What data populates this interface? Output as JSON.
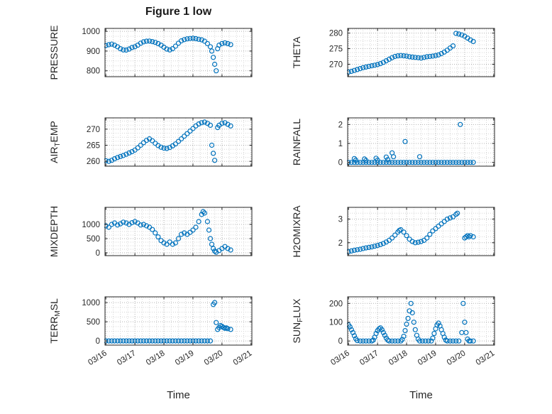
{
  "figure": {
    "title": "Figure 1 low",
    "xlabel": "Time",
    "accent_color": "#0072BD",
    "axis_color": "#262626",
    "grid_color": "#b3b3b3",
    "minor_grid_color": "#d6d6d6",
    "xlim": [
      15.97,
      21.03
    ],
    "xticks": [
      16,
      17,
      18,
      19,
      20,
      21
    ],
    "xticklabels": [
      "03/16",
      "03/17",
      "03/18",
      "03/19",
      "03/20",
      "03/21"
    ],
    "x_minor_step": 0.25
  },
  "chart_data": [
    {
      "type": "scatter",
      "name": "pressure",
      "ylabel": "PRESSURE",
      "row": 0,
      "col": 0,
      "yticks": [
        800,
        900,
        1000
      ],
      "ylim": [
        770,
        1015
      ],
      "yminor": 25,
      "x": [
        16.0,
        16.1,
        16.2,
        16.3,
        16.4,
        16.5,
        16.6,
        16.7,
        16.8,
        16.9,
        17.0,
        17.1,
        17.2,
        17.3,
        17.4,
        17.5,
        17.6,
        17.7,
        17.8,
        17.9,
        18.0,
        18.1,
        18.2,
        18.3,
        18.4,
        18.5,
        18.6,
        18.7,
        18.8,
        18.9,
        19.0,
        19.1,
        19.2,
        19.3,
        19.4,
        19.5,
        19.6,
        19.65,
        19.7,
        19.75,
        19.8,
        19.85,
        19.9,
        20.0,
        20.1,
        20.2,
        20.3
      ],
      "y": [
        928,
        932,
        935,
        930,
        922,
        912,
        906,
        905,
        910,
        918,
        922,
        930,
        940,
        947,
        950,
        951,
        948,
        944,
        938,
        930,
        920,
        910,
        906,
        912,
        925,
        940,
        952,
        958,
        962,
        964,
        965,
        963,
        960,
        957,
        950,
        938,
        922,
        900,
        868,
        833,
        800,
        912,
        930,
        938,
        942,
        938,
        933
      ]
    },
    {
      "type": "scatter",
      "name": "theta",
      "ylabel": "THETA",
      "row": 0,
      "col": 1,
      "yticks": [
        270,
        275,
        280
      ],
      "ylim": [
        266,
        281.5
      ],
      "yminor": 1.25,
      "x": [
        16.0,
        16.1,
        16.2,
        16.3,
        16.4,
        16.5,
        16.6,
        16.7,
        16.8,
        16.9,
        17.0,
        17.1,
        17.2,
        17.3,
        17.4,
        17.5,
        17.6,
        17.7,
        17.8,
        17.9,
        18.0,
        18.1,
        18.2,
        18.3,
        18.4,
        18.5,
        18.6,
        18.7,
        18.8,
        18.9,
        19.0,
        19.1,
        19.2,
        19.3,
        19.4,
        19.5,
        19.6,
        19.7,
        19.8,
        19.9,
        20.0,
        20.1,
        20.2,
        20.3
      ],
      "y": [
        267.5,
        267.7,
        268.0,
        268.3,
        268.6,
        268.9,
        269.1,
        269.3,
        269.5,
        269.7,
        269.9,
        270.2,
        270.6,
        271.1,
        271.6,
        272.1,
        272.5,
        272.7,
        272.8,
        272.7,
        272.6,
        272.4,
        272.3,
        272.2,
        272.1,
        272.0,
        272.2,
        272.4,
        272.5,
        272.6,
        272.8,
        273.0,
        273.4,
        273.9,
        274.5,
        275.2,
        275.9,
        279.9,
        279.7,
        279.4,
        279.0,
        278.4,
        277.8,
        277.3
      ]
    },
    {
      "type": "scatter",
      "name": "airtemp",
      "ylabel": "AIR_{T}EMP",
      "row": 1,
      "col": 0,
      "yticks": [
        260,
        265,
        270
      ],
      "ylim": [
        258.5,
        273.5
      ],
      "yminor": 1.25,
      "x": [
        16.0,
        16.1,
        16.2,
        16.3,
        16.4,
        16.5,
        16.6,
        16.7,
        16.8,
        16.9,
        17.0,
        17.1,
        17.2,
        17.3,
        17.4,
        17.5,
        17.6,
        17.7,
        17.8,
        17.9,
        18.0,
        18.1,
        18.2,
        18.3,
        18.4,
        18.5,
        18.6,
        18.7,
        18.8,
        18.9,
        19.0,
        19.1,
        19.2,
        19.3,
        19.4,
        19.5,
        19.6,
        19.65,
        19.7,
        19.75,
        19.85,
        19.9,
        20.0,
        20.1,
        20.2,
        20.3
      ],
      "y": [
        260.2,
        260.0,
        260.3,
        260.8,
        261.2,
        261.5,
        261.8,
        262.2,
        262.6,
        263.0,
        263.5,
        264.2,
        265.0,
        265.8,
        266.5,
        267.0,
        266.4,
        265.6,
        264.9,
        264.4,
        264.1,
        264.0,
        264.3,
        264.8,
        265.4,
        266.2,
        267.0,
        267.8,
        268.6,
        269.4,
        270.2,
        271.0,
        271.6,
        272.0,
        272.2,
        271.8,
        271.2,
        265.0,
        262.5,
        260.3,
        270.5,
        271.2,
        271.8,
        272.0,
        271.5,
        271.0
      ]
    },
    {
      "type": "scatter",
      "name": "rainfall",
      "ylabel": "RAINFALL",
      "row": 1,
      "col": 1,
      "yticks": [
        0,
        1,
        2
      ],
      "ylim": [
        -0.2,
        2.35
      ],
      "yminor": 0.25,
      "x": [
        16.0,
        16.1,
        16.2,
        16.3,
        16.4,
        16.5,
        16.6,
        16.7,
        16.8,
        16.9,
        17.0,
        17.1,
        17.2,
        17.3,
        17.4,
        17.5,
        17.6,
        17.7,
        17.8,
        17.9,
        18.0,
        18.1,
        18.2,
        18.3,
        18.4,
        18.5,
        18.6,
        18.7,
        18.8,
        18.9,
        19.0,
        19.1,
        19.2,
        19.3,
        19.4,
        19.5,
        19.6,
        19.7,
        19.8,
        19.9,
        20.0,
        20.1,
        20.2,
        20.3,
        16.2,
        16.25,
        16.55,
        16.6,
        16.95,
        17.0,
        17.3,
        17.35,
        17.5,
        17.55,
        17.95,
        18.45,
        19.85
      ],
      "y": [
        0,
        0,
        0,
        0,
        0,
        0,
        0,
        0,
        0,
        0,
        0,
        0,
        0,
        0,
        0,
        0,
        0,
        0,
        0,
        0,
        0,
        0,
        0,
        0,
        0,
        0,
        0,
        0,
        0,
        0,
        0,
        0,
        0,
        0,
        0,
        0,
        0,
        0,
        0,
        0,
        0,
        0,
        0,
        0,
        0.2,
        0.12,
        0.18,
        0.1,
        0.22,
        0.12,
        0.28,
        0.15,
        0.5,
        0.3,
        1.1,
        0.3,
        2.0
      ]
    },
    {
      "type": "scatter",
      "name": "mixdepth",
      "ylabel": "MIXDEPTH",
      "row": 2,
      "col": 0,
      "yticks": [
        0,
        500,
        1000
      ],
      "ylim": [
        -100,
        1600
      ],
      "yminor": 125,
      "x": [
        16.0,
        16.1,
        16.2,
        16.3,
        16.4,
        16.5,
        16.6,
        16.7,
        16.8,
        16.9,
        17.0,
        17.1,
        17.2,
        17.3,
        17.4,
        17.5,
        17.6,
        17.7,
        17.8,
        17.9,
        18.0,
        18.1,
        18.2,
        18.3,
        18.4,
        18.5,
        18.6,
        18.7,
        18.8,
        18.9,
        19.0,
        19.1,
        19.2,
        19.3,
        19.35,
        19.4,
        19.5,
        19.55,
        19.6,
        19.65,
        19.7,
        19.75,
        19.8,
        19.9,
        20.0,
        20.1,
        20.2,
        20.3
      ],
      "y": [
        950,
        900,
        1000,
        1050,
        980,
        1020,
        1080,
        1050,
        1000,
        1060,
        1100,
        1050,
        980,
        1000,
        950,
        900,
        820,
        700,
        560,
        430,
        350,
        300,
        380,
        300,
        350,
        500,
        650,
        700,
        650,
        720,
        800,
        900,
        1100,
        1350,
        1450,
        1400,
        1100,
        800,
        500,
        300,
        150,
        60,
        20,
        80,
        150,
        220,
        150,
        100
      ]
    },
    {
      "type": "scatter",
      "name": "h2omixra",
      "ylabel": "H2OMIXRA",
      "row": 2,
      "col": 1,
      "yticks": [
        2,
        3
      ],
      "ylim": [
        1.45,
        3.5
      ],
      "yminor": 0.25,
      "x": [
        16.0,
        16.1,
        16.2,
        16.3,
        16.4,
        16.5,
        16.6,
        16.7,
        16.8,
        16.9,
        17.0,
        17.1,
        17.2,
        17.3,
        17.4,
        17.5,
        17.6,
        17.7,
        17.75,
        17.8,
        17.9,
        18.0,
        18.1,
        18.2,
        18.3,
        18.4,
        18.5,
        18.6,
        18.7,
        18.8,
        18.9,
        19.0,
        19.1,
        19.2,
        19.3,
        19.4,
        19.5,
        19.6,
        19.7,
        19.75,
        20.0,
        20.05,
        20.1,
        20.15,
        20.2,
        20.3
      ],
      "y": [
        1.62,
        1.65,
        1.68,
        1.7,
        1.72,
        1.75,
        1.78,
        1.8,
        1.82,
        1.85,
        1.88,
        1.92,
        1.97,
        2.03,
        2.1,
        2.2,
        2.32,
        2.45,
        2.52,
        2.55,
        2.45,
        2.3,
        2.15,
        2.05,
        2.0,
        2.02,
        2.05,
        2.1,
        2.2,
        2.35,
        2.5,
        2.6,
        2.7,
        2.8,
        2.9,
        3.0,
        3.05,
        3.1,
        3.2,
        3.25,
        2.2,
        2.25,
        2.3,
        2.25,
        2.3,
        2.25
      ]
    },
    {
      "type": "scatter",
      "name": "terrmsl",
      "ylabel": "TERR_{M}SL",
      "row": 3,
      "col": 0,
      "yticks": [
        0,
        500,
        1000
      ],
      "ylim": [
        -110,
        1150
      ],
      "yminor": 125,
      "x": [
        16.0,
        16.1,
        16.2,
        16.3,
        16.4,
        16.5,
        16.6,
        16.7,
        16.8,
        16.9,
        17.0,
        17.1,
        17.2,
        17.3,
        17.4,
        17.5,
        17.6,
        17.7,
        17.8,
        17.9,
        18.0,
        18.1,
        18.2,
        18.3,
        18.4,
        18.5,
        18.6,
        18.7,
        18.8,
        18.9,
        19.0,
        19.1,
        19.2,
        19.3,
        19.4,
        19.5,
        19.6,
        19.7,
        19.75,
        19.8,
        19.85,
        19.9,
        19.95,
        20.0,
        20.05,
        20.1,
        20.15,
        20.2,
        20.3
      ],
      "y": [
        0,
        0,
        0,
        0,
        0,
        0,
        0,
        0,
        0,
        0,
        0,
        0,
        0,
        0,
        0,
        0,
        0,
        0,
        0,
        0,
        0,
        0,
        0,
        0,
        0,
        0,
        0,
        0,
        0,
        0,
        0,
        0,
        0,
        0,
        0,
        0,
        0,
        950,
        1000,
        480,
        300,
        350,
        400,
        380,
        350,
        330,
        340,
        320,
        300
      ]
    },
    {
      "type": "scatter",
      "name": "sunflux",
      "ylabel": "SUN_{F}LUX",
      "row": 3,
      "col": 1,
      "yticks": [
        0,
        100,
        200
      ],
      "ylim": [
        -22,
        235
      ],
      "yminor": 25,
      "x": [
        16.0,
        16.05,
        16.1,
        16.15,
        16.2,
        16.25,
        16.3,
        16.4,
        16.5,
        16.6,
        16.7,
        16.8,
        16.85,
        16.9,
        16.95,
        17.0,
        17.05,
        17.1,
        17.15,
        17.2,
        17.25,
        17.3,
        17.35,
        17.4,
        17.5,
        17.6,
        17.7,
        17.8,
        17.85,
        17.9,
        17.95,
        18.0,
        18.05,
        18.1,
        18.15,
        18.2,
        18.25,
        18.3,
        18.35,
        18.4,
        18.45,
        18.55,
        18.65,
        18.75,
        18.85,
        18.9,
        18.95,
        19.0,
        19.05,
        19.1,
        19.15,
        19.2,
        19.25,
        19.3,
        19.35,
        19.4,
        19.5,
        19.6,
        19.7,
        19.8,
        19.9,
        19.95,
        20.0,
        20.05,
        20.1,
        20.15,
        20.2,
        20.3
      ],
      "y": [
        85,
        75,
        60,
        45,
        28,
        12,
        2,
        0,
        0,
        0,
        0,
        0,
        5,
        20,
        40,
        55,
        65,
        70,
        60,
        45,
        30,
        15,
        5,
        0,
        0,
        0,
        0,
        0,
        8,
        25,
        55,
        90,
        120,
        160,
        200,
        150,
        100,
        60,
        30,
        10,
        0,
        0,
        0,
        0,
        0,
        15,
        40,
        65,
        85,
        95,
        80,
        60,
        40,
        20,
        5,
        0,
        0,
        0,
        0,
        0,
        45,
        200,
        100,
        45,
        10,
        0,
        0,
        0
      ]
    }
  ]
}
